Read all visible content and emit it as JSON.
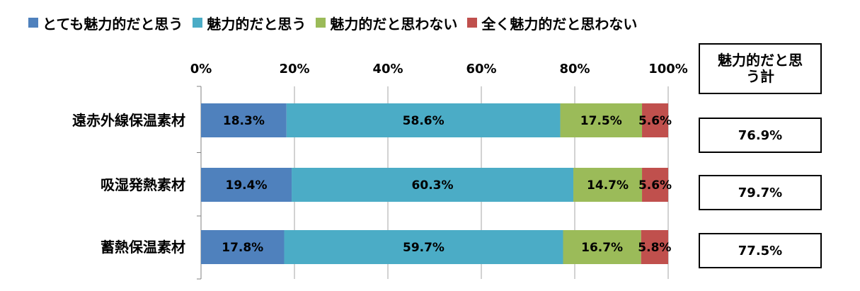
{
  "chart_data": {
    "type": "bar",
    "orientation": "horizontal",
    "stacked": true,
    "categories": [
      "遠赤外線保温素材",
      "吸湿発熱素材",
      "蓄熱保温素材"
    ],
    "series": [
      {
        "name": "とても魅力的だと思う",
        "color": "#4f81bd",
        "values": [
          18.3,
          19.4,
          17.8
        ],
        "labels": [
          "18.3%",
          "19.4%",
          "17.8%"
        ]
      },
      {
        "name": "魅力的だと思う",
        "color": "#4bacc6",
        "values": [
          58.6,
          60.3,
          59.7
        ],
        "labels": [
          "58.6%",
          "60.3%",
          "59.7%"
        ]
      },
      {
        "name": "魅力的だと思わない",
        "color": "#9bbb59",
        "values": [
          17.5,
          14.7,
          16.7
        ],
        "labels": [
          "17.5%",
          "14.7%",
          "16.7%"
        ]
      },
      {
        "name": "全く魅力的だと思わない",
        "color": "#c0504d",
        "values": [
          5.6,
          5.6,
          5.8
        ],
        "labels": [
          "5.6%",
          "5.6%",
          "5.8%"
        ]
      }
    ],
    "xlim": [
      0,
      100
    ],
    "ticks": [
      "0%",
      "20%",
      "40%",
      "60%",
      "80%",
      "100%"
    ],
    "legend_position": "top",
    "grid": true
  },
  "totals": {
    "header": "魅力的だと思う計",
    "values": [
      "76.9%",
      "79.7%",
      "77.5%"
    ]
  }
}
